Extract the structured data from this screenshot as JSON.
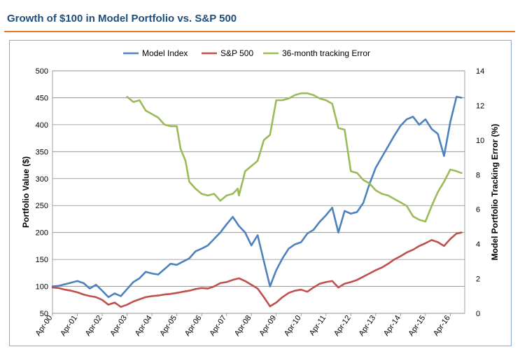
{
  "page": {
    "title": "Growth of $100 in Model Portfolio vs. S&P 500"
  },
  "chart_data": {
    "type": "line",
    "title": "Growth of $100 in Model Portfolio vs. S&P 500",
    "xlabel": "",
    "ylabel": "Portfolio Value ($)",
    "y2label": "Model Portfolio Tracking Error (%)",
    "ylim": [
      50,
      500
    ],
    "y2lim": [
      0,
      14
    ],
    "yticks": [
      50,
      100,
      150,
      200,
      250,
      300,
      350,
      400,
      450,
      500
    ],
    "y2ticks": [
      0,
      2,
      4,
      6,
      8,
      10,
      12,
      14
    ],
    "xlim": [
      2000.25,
      2016.83
    ],
    "xtick_labels": [
      "Apr-00",
      "Apr-01",
      "Apr-02",
      "Apr-03",
      "Apr-04",
      "Apr-05",
      "Apr-06",
      "Apr-07",
      "Apr-08",
      "Apr-09",
      "Apr-10",
      "Apr-11",
      "Apr-12",
      "Apr-13",
      "Apr-14",
      "Apr-15",
      "Apr-16"
    ],
    "xtick_values": [
      2000.25,
      2001.25,
      2002.25,
      2003.25,
      2004.25,
      2005.25,
      2006.25,
      2007.25,
      2008.25,
      2009.25,
      2010.25,
      2011.25,
      2012.25,
      2013.25,
      2014.25,
      2015.25,
      2016.25
    ],
    "grid": true,
    "legend_position": "top",
    "series": [
      {
        "name": "Model Index",
        "color": "#4f81bd",
        "axis": "left",
        "x": [
          2000.25,
          2000.5,
          2000.75,
          2001.0,
          2001.25,
          2001.5,
          2001.75,
          2002.0,
          2002.25,
          2002.5,
          2002.75,
          2003.0,
          2003.25,
          2003.5,
          2003.75,
          2004.0,
          2004.25,
          2004.5,
          2004.75,
          2005.0,
          2005.25,
          2005.5,
          2005.75,
          2006.0,
          2006.25,
          2006.5,
          2006.75,
          2007.0,
          2007.25,
          2007.5,
          2007.75,
          2008.0,
          2008.25,
          2008.5,
          2008.75,
          2009.0,
          2009.25,
          2009.5,
          2009.75,
          2010.0,
          2010.25,
          2010.5,
          2010.75,
          2011.0,
          2011.25,
          2011.5,
          2011.75,
          2012.0,
          2012.25,
          2012.5,
          2012.75,
          2013.0,
          2013.25,
          2013.5,
          2013.75,
          2014.0,
          2014.25,
          2014.5,
          2014.75,
          2015.0,
          2015.25,
          2015.5,
          2015.75,
          2016.0,
          2016.25,
          2016.5,
          2016.7
        ],
        "values": [
          100,
          101,
          104,
          107,
          110,
          106,
          96,
          103,
          92,
          80,
          87,
          82,
          95,
          108,
          115,
          127,
          124,
          122,
          132,
          142,
          140,
          146,
          152,
          165,
          170,
          176,
          188,
          200,
          215,
          229,
          212,
          200,
          176,
          195,
          147,
          100,
          130,
          152,
          170,
          178,
          182,
          198,
          205,
          220,
          232,
          246,
          200,
          240,
          235,
          238,
          255,
          290,
          320,
          340,
          360,
          380,
          398,
          410,
          415,
          400,
          410,
          392,
          383,
          342,
          405,
          452,
          450
        ]
      },
      {
        "name": "S&P 500",
        "color": "#c0504d",
        "axis": "left",
        "x": [
          2000.25,
          2000.5,
          2000.75,
          2001.0,
          2001.25,
          2001.5,
          2001.75,
          2002.0,
          2002.25,
          2002.5,
          2002.75,
          2003.0,
          2003.25,
          2003.5,
          2003.75,
          2004.0,
          2004.25,
          2004.5,
          2004.75,
          2005.0,
          2005.25,
          2005.5,
          2005.75,
          2006.0,
          2006.25,
          2006.5,
          2006.75,
          2007.0,
          2007.25,
          2007.5,
          2007.75,
          2008.0,
          2008.25,
          2008.5,
          2008.75,
          2009.0,
          2009.25,
          2009.5,
          2009.75,
          2010.0,
          2010.25,
          2010.5,
          2010.75,
          2011.0,
          2011.25,
          2011.5,
          2011.75,
          2012.0,
          2012.25,
          2012.5,
          2012.75,
          2013.0,
          2013.25,
          2013.5,
          2013.75,
          2014.0,
          2014.25,
          2014.5,
          2014.75,
          2015.0,
          2015.25,
          2015.5,
          2015.75,
          2016.0,
          2016.25,
          2016.5,
          2016.7
        ],
        "values": [
          98,
          97,
          94,
          92,
          89,
          85,
          82,
          80,
          75,
          66,
          70,
          62,
          66,
          72,
          76,
          80,
          82,
          83,
          85,
          86,
          88,
          90,
          92,
          95,
          97,
          96,
          100,
          106,
          108,
          112,
          115,
          110,
          103,
          96,
          80,
          63,
          70,
          80,
          88,
          92,
          94,
          90,
          98,
          105,
          108,
          110,
          98,
          105,
          108,
          112,
          118,
          124,
          130,
          135,
          142,
          150,
          156,
          163,
          168,
          175,
          180,
          186,
          182,
          175,
          188,
          198,
          200
        ]
      },
      {
        "name": "36-month tracking Error",
        "color": "#9bbb59",
        "axis": "right",
        "x": [
          2003.25,
          2003.5,
          2003.75,
          2004.0,
          2004.25,
          2004.5,
          2004.75,
          2005.0,
          2005.25,
          2005.4,
          2005.6,
          2005.75,
          2006.0,
          2006.25,
          2006.5,
          2006.75,
          2007.0,
          2007.25,
          2007.5,
          2007.7,
          2007.75,
          2008.0,
          2008.25,
          2008.5,
          2008.75,
          2009.0,
          2009.25,
          2009.5,
          2009.75,
          2010.0,
          2010.25,
          2010.5,
          2010.75,
          2011.0,
          2011.25,
          2011.5,
          2011.75,
          2012.0,
          2012.25,
          2012.5,
          2012.75,
          2013.0,
          2013.25,
          2013.5,
          2013.75,
          2014.0,
          2014.25,
          2014.5,
          2014.75,
          2015.0,
          2015.25,
          2015.5,
          2015.75,
          2016.0,
          2016.25,
          2016.5,
          2016.7
        ],
        "values": [
          12.5,
          12.2,
          12.3,
          11.7,
          11.5,
          11.3,
          10.9,
          10.8,
          10.8,
          9.5,
          8.8,
          7.6,
          7.2,
          6.9,
          6.8,
          6.9,
          6.5,
          6.8,
          6.9,
          7.2,
          6.8,
          8.2,
          8.5,
          8.8,
          10.0,
          10.3,
          12.3,
          12.3,
          12.4,
          12.6,
          12.7,
          12.7,
          12.6,
          12.4,
          12.3,
          12.1,
          10.7,
          10.6,
          8.2,
          8.1,
          7.7,
          7.5,
          7.1,
          6.9,
          6.8,
          6.6,
          6.4,
          6.2,
          5.6,
          5.4,
          5.3,
          6.2,
          7.0,
          7.6,
          8.3,
          8.2,
          8.1
        ]
      }
    ]
  }
}
